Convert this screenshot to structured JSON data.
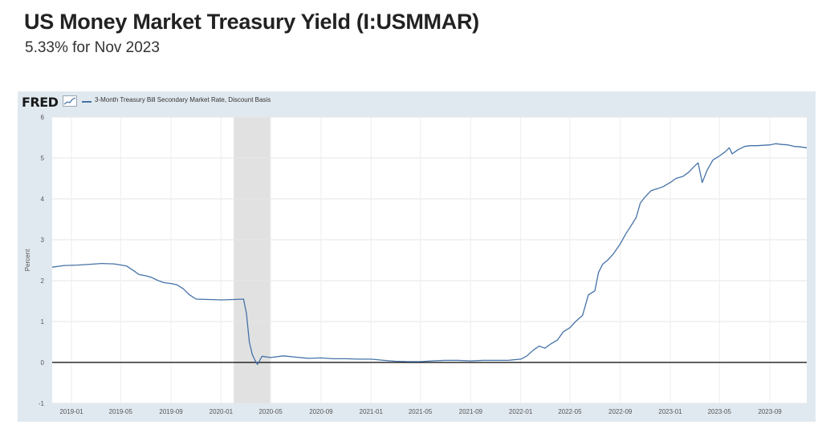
{
  "title": "US Money Market Treasury Yield (I:USMMAR)",
  "subtitle": "5.33% for Nov 2023",
  "fred": {
    "logo": "FRED",
    "legend_label": "3-Month Treasury Bill Secondary Market Rate, Discount Basis"
  },
  "colors": {
    "series": "#4572a7",
    "recession": "#e1e1e1",
    "plot_bg": "#ffffff",
    "frame_bg": "#e1e9f0"
  },
  "chart_data": {
    "type": "line",
    "title": "",
    "xlabel": "",
    "ylabel": "Percent",
    "xlim": [
      "2018-11-15",
      "2023-11-30"
    ],
    "ylim": [
      -1,
      6
    ],
    "grid": true,
    "legend": "top-left",
    "x_ticks": [
      "2019-01",
      "2019-05",
      "2019-09",
      "2020-01",
      "2020-05",
      "2020-09",
      "2021-01",
      "2021-05",
      "2021-09",
      "2022-01",
      "2022-05",
      "2022-09",
      "2023-01",
      "2023-05",
      "2023-09"
    ],
    "y_ticks": [
      -1,
      0,
      1,
      2,
      3,
      4,
      5,
      6
    ],
    "recession": {
      "start": "2020-02-01",
      "end": "2020-04-30"
    },
    "series": [
      {
        "name": "3-Month Treasury Bill Secondary Market Rate, Discount Basis",
        "points": [
          [
            "2018-11-15",
            2.33
          ],
          [
            "2018-12-15",
            2.37
          ],
          [
            "2019-01-15",
            2.38
          ],
          [
            "2019-02-15",
            2.4
          ],
          [
            "2019-03-15",
            2.42
          ],
          [
            "2019-04-15",
            2.41
          ],
          [
            "2019-05-15",
            2.36
          ],
          [
            "2019-06-01",
            2.25
          ],
          [
            "2019-06-15",
            2.15
          ],
          [
            "2019-07-01",
            2.12
          ],
          [
            "2019-07-15",
            2.08
          ],
          [
            "2019-08-01",
            2.0
          ],
          [
            "2019-08-15",
            1.95
          ],
          [
            "2019-09-01",
            1.93
          ],
          [
            "2019-09-15",
            1.9
          ],
          [
            "2019-10-01",
            1.8
          ],
          [
            "2019-10-15",
            1.66
          ],
          [
            "2019-11-01",
            1.55
          ],
          [
            "2019-12-01",
            1.54
          ],
          [
            "2020-01-01",
            1.53
          ],
          [
            "2020-02-01",
            1.54
          ],
          [
            "2020-02-25",
            1.55
          ],
          [
            "2020-03-03",
            1.2
          ],
          [
            "2020-03-10",
            0.5
          ],
          [
            "2020-03-17",
            0.2
          ],
          [
            "2020-03-24",
            0.05
          ],
          [
            "2020-03-30",
            -0.05
          ],
          [
            "2020-04-10",
            0.15
          ],
          [
            "2020-05-01",
            0.12
          ],
          [
            "2020-06-01",
            0.16
          ],
          [
            "2020-07-01",
            0.13
          ],
          [
            "2020-08-01",
            0.1
          ],
          [
            "2020-09-01",
            0.11
          ],
          [
            "2020-10-01",
            0.09
          ],
          [
            "2020-11-01",
            0.09
          ],
          [
            "2020-12-01",
            0.08
          ],
          [
            "2021-01-01",
            0.08
          ],
          [
            "2021-02-01",
            0.05
          ],
          [
            "2021-03-01",
            0.03
          ],
          [
            "2021-04-01",
            0.02
          ],
          [
            "2021-05-01",
            0.02
          ],
          [
            "2021-06-01",
            0.04
          ],
          [
            "2021-07-01",
            0.05
          ],
          [
            "2021-08-01",
            0.05
          ],
          [
            "2021-09-01",
            0.04
          ],
          [
            "2021-10-01",
            0.05
          ],
          [
            "2021-11-01",
            0.05
          ],
          [
            "2021-12-01",
            0.05
          ],
          [
            "2022-01-01",
            0.08
          ],
          [
            "2022-01-15",
            0.15
          ],
          [
            "2022-02-01",
            0.3
          ],
          [
            "2022-02-15",
            0.4
          ],
          [
            "2022-03-01",
            0.35
          ],
          [
            "2022-03-15",
            0.45
          ],
          [
            "2022-04-01",
            0.55
          ],
          [
            "2022-04-15",
            0.75
          ],
          [
            "2022-05-01",
            0.85
          ],
          [
            "2022-05-15",
            1.0
          ],
          [
            "2022-06-01",
            1.15
          ],
          [
            "2022-06-15",
            1.65
          ],
          [
            "2022-07-01",
            1.75
          ],
          [
            "2022-07-10",
            2.2
          ],
          [
            "2022-07-20",
            2.4
          ],
          [
            "2022-08-01",
            2.5
          ],
          [
            "2022-08-15",
            2.65
          ],
          [
            "2022-09-01",
            2.9
          ],
          [
            "2022-09-15",
            3.15
          ],
          [
            "2022-10-01",
            3.4
          ],
          [
            "2022-10-10",
            3.55
          ],
          [
            "2022-10-20",
            3.9
          ],
          [
            "2022-11-01",
            4.05
          ],
          [
            "2022-11-15",
            4.2
          ],
          [
            "2022-12-01",
            4.25
          ],
          [
            "2022-12-15",
            4.3
          ],
          [
            "2023-01-01",
            4.4
          ],
          [
            "2023-01-15",
            4.5
          ],
          [
            "2023-02-01",
            4.55
          ],
          [
            "2023-02-15",
            4.65
          ],
          [
            "2023-03-01",
            4.8
          ],
          [
            "2023-03-10",
            4.88
          ],
          [
            "2023-03-20",
            4.4
          ],
          [
            "2023-04-01",
            4.7
          ],
          [
            "2023-04-15",
            4.95
          ],
          [
            "2023-05-01",
            5.05
          ],
          [
            "2023-05-15",
            5.15
          ],
          [
            "2023-05-25",
            5.25
          ],
          [
            "2023-06-01",
            5.1
          ],
          [
            "2023-06-15",
            5.2
          ],
          [
            "2023-07-01",
            5.28
          ],
          [
            "2023-07-15",
            5.3
          ],
          [
            "2023-08-01",
            5.3
          ],
          [
            "2023-08-15",
            5.31
          ],
          [
            "2023-09-01",
            5.32
          ],
          [
            "2023-09-15",
            5.35
          ],
          [
            "2023-10-01",
            5.33
          ],
          [
            "2023-10-15",
            5.32
          ],
          [
            "2023-11-01",
            5.28
          ],
          [
            "2023-11-15",
            5.27
          ],
          [
            "2023-11-30",
            5.25
          ]
        ]
      }
    ]
  }
}
